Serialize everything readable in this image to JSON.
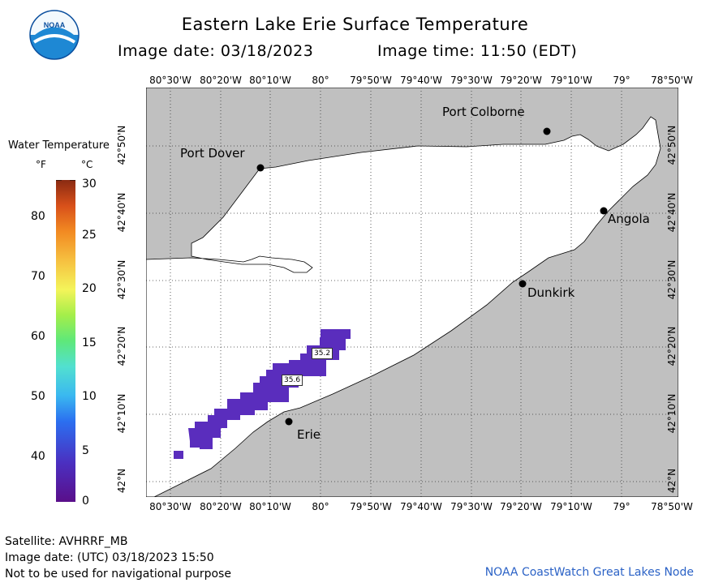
{
  "header": {
    "title": "Eastern Lake Erie Surface Temperature",
    "image_date": "Image date: 03/18/2023",
    "image_time": "Image time: 11:50 (EDT)"
  },
  "logo": {
    "text": "NOAA"
  },
  "legend": {
    "title": "Water Temperature",
    "unit_f": "°F",
    "unit_c": "°C",
    "fahrenheit_ticks": [
      "80",
      "70",
      "60",
      "50",
      "40"
    ],
    "celsius_ticks": [
      "30",
      "25",
      "20",
      "15",
      "10",
      "5",
      "0"
    ]
  },
  "map": {
    "longitude_labels": [
      "80°30'W",
      "80°20'W",
      "80°10'W",
      "80°",
      "79°50'W",
      "79°40'W",
      "79°30'W",
      "79°20'W",
      "79°10'W",
      "79°",
      "78°50'W"
    ],
    "latitude_labels": [
      "42°50'N",
      "42°40'N",
      "42°30'N",
      "42°20'N",
      "42°10'N",
      "42°N"
    ],
    "cities": {
      "port_colborne": "Port Colborne",
      "port_dover": "Port Dover",
      "angola": "Angola",
      "dunkirk": "Dunkirk",
      "erie": "Erie"
    },
    "temperature_labels": [
      "35.2",
      "35.6"
    ],
    "colors": {
      "land": "#c0c0c0",
      "water": "#ffffff",
      "data_fill": "#5a2dbd"
    }
  },
  "footer": {
    "satellite": "Satellite: AVHRRF_MB",
    "utc_date": "Image date: (UTC) 03/18/2023  15:50",
    "disclaimer": "Not to be used for navigational purpose",
    "credit": "NOAA CoastWatch Great Lakes Node"
  }
}
